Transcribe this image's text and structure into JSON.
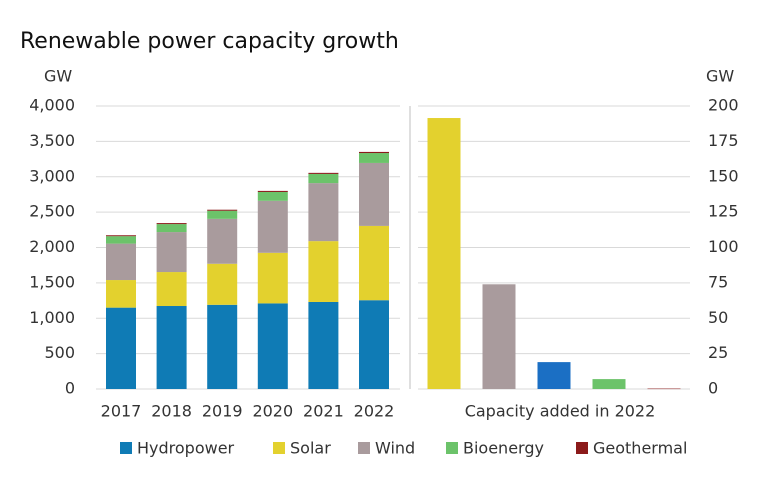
{
  "chart_data": [
    {
      "type": "stacked_bar",
      "title": "Renewable power capacity growth",
      "y_label": "GW",
      "categories": [
        "2017",
        "2018",
        "2019",
        "2020",
        "2021",
        "2022"
      ],
      "series": [
        {
          "name": "Hydropower",
          "color": "#0f7bb5",
          "values": [
            1150,
            1173,
            1190,
            1210,
            1230,
            1255
          ]
        },
        {
          "name": "Solar",
          "color": "#e3d12e",
          "values": [
            390,
            480,
            580,
            715,
            860,
            1050
          ]
        },
        {
          "name": "Wind",
          "color": "#a99b9d",
          "values": [
            515,
            565,
            635,
            735,
            820,
            890
          ]
        },
        {
          "name": "Bioenergy",
          "color": "#6cc36a",
          "values": [
            105,
            113,
            115,
            125,
            130,
            140
          ]
        },
        {
          "name": "Geothermal",
          "color": "#8b1a1a",
          "values": [
            13,
            14,
            14,
            15,
            15,
            16
          ]
        }
      ],
      "ylim": [
        0,
        4000
      ],
      "yticks": [
        0,
        500,
        {
          "value": 1000,
          "label": "1,000"
        },
        {
          "value": 1500,
          "label": "1,500"
        },
        {
          "value": 2000,
          "label": "2,000"
        },
        {
          "value": 2500,
          "label": "2,500"
        },
        {
          "value": 3000,
          "label": "3,000"
        },
        {
          "value": 3500,
          "label": "3,500"
        },
        {
          "value": 4000,
          "label": "4,000"
        }
      ],
      "grid": true
    },
    {
      "type": "bar",
      "x_label": "Capacity added in 2022",
      "y_label": "GW",
      "categories": [
        null,
        null,
        null,
        null,
        null
      ],
      "values": [
        191.5,
        74,
        19,
        7,
        0.3
      ],
      "colors": [
        "#e3d12e",
        "#a99b9d",
        "#1b6fc4",
        "#6cc36a",
        "#8b1a1a"
      ],
      "ylim": [
        0,
        200
      ],
      "yticks": [
        0,
        25,
        50,
        75,
        100,
        125,
        150,
        175,
        200
      ],
      "grid": true
    }
  ]
}
